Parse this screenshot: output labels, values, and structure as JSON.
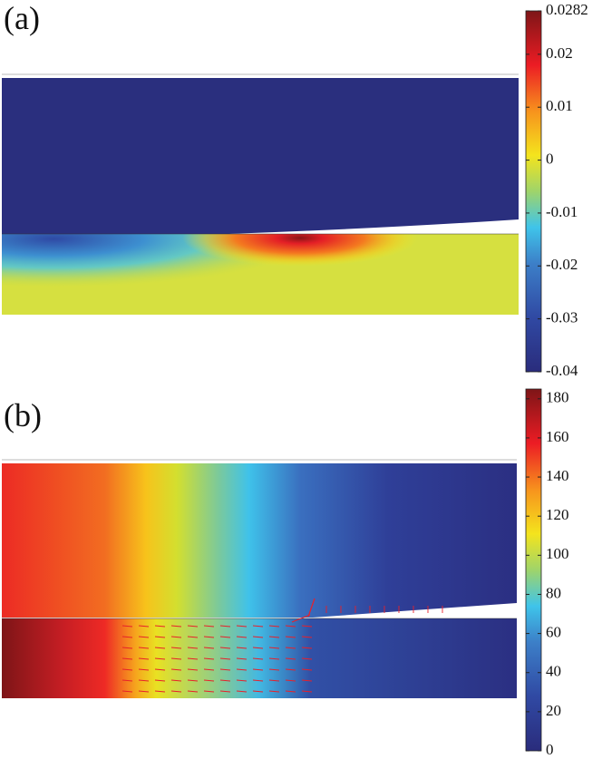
{
  "chart_data": [
    {
      "type": "colormap",
      "panel_label": "(a)",
      "ylim": [
        -0.04,
        0.0282
      ],
      "yticks": [
        -0.04,
        -0.03,
        -0.02,
        -0.01,
        0,
        0.01,
        0.02,
        0.0282
      ]
    },
    {
      "type": "colormap",
      "panel_label": "(b)",
      "ylim": [
        0,
        185
      ],
      "yticks": [
        0,
        20,
        40,
        60,
        80,
        100,
        120,
        140,
        160,
        180
      ]
    }
  ]
}
